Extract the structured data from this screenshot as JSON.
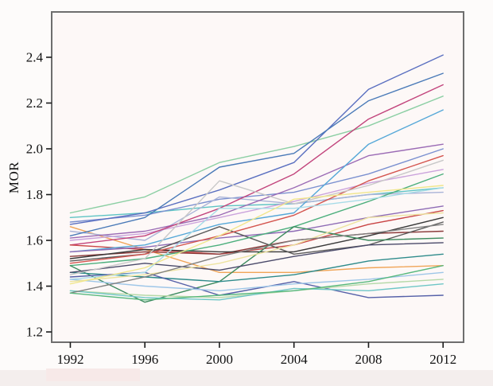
{
  "figure": {
    "background": "#fdfbfa",
    "plot_background": "#fdf8f7",
    "frame_color": "#6e6e6e",
    "tick_color": "#1a1a1a",
    "text_color": "#111111"
  },
  "chart_data": {
    "type": "line",
    "title": "",
    "xlabel": "",
    "ylabel": "MOR",
    "grid": false,
    "legend": "none",
    "x": [
      1992,
      1996,
      2000,
      2004,
      2008,
      2012
    ],
    "x_tick_labels": [
      "1992",
      "1996",
      "2000",
      "2004",
      "2008",
      "2012"
    ],
    "y_ticks": [
      1.2,
      1.4,
      1.6,
      1.8,
      2.0,
      2.2,
      2.4
    ],
    "y_tick_labels": [
      "1.2",
      "1.4",
      "1.6",
      "1.8",
      "2.0",
      "2.2",
      "2.4"
    ],
    "xlim": [
      1991.0,
      2013.1
    ],
    "ylim": [
      1.155,
      2.598
    ],
    "series": [
      {
        "color": "#8ccfa4",
        "values": [
          1.72,
          1.79,
          1.94,
          2.01,
          2.1,
          2.23
        ]
      },
      {
        "color": "#5ec4c4",
        "values": [
          1.7,
          1.72,
          1.75,
          1.76,
          1.8,
          1.83
        ]
      },
      {
        "color": "#7b90d0",
        "values": [
          1.68,
          1.71,
          1.78,
          1.81,
          1.89,
          2.0
        ]
      },
      {
        "color": "#5a6fc0",
        "values": [
          1.67,
          1.72,
          1.82,
          1.94,
          2.26,
          2.41
        ]
      },
      {
        "color": "#f0a558",
        "values": [
          1.66,
          1.56,
          1.46,
          1.46,
          1.48,
          1.49
        ]
      },
      {
        "color": "#aab4d8",
        "values": [
          1.64,
          1.6,
          1.79,
          1.76,
          1.8,
          1.81
        ]
      },
      {
        "color": "#4a7ab8",
        "values": [
          1.62,
          1.7,
          1.92,
          1.98,
          2.21,
          2.33
        ]
      },
      {
        "color": "#9b6bb5",
        "values": [
          1.61,
          1.64,
          1.71,
          1.83,
          1.97,
          2.02
        ]
      },
      {
        "color": "#cba3dc",
        "values": [
          1.6,
          1.63,
          1.7,
          1.77,
          1.85,
          1.91
        ]
      },
      {
        "color": "#c2447c",
        "values": [
          1.58,
          1.62,
          1.74,
          1.89,
          2.13,
          2.28
        ]
      },
      {
        "color": "#c94545",
        "values": [
          1.58,
          1.56,
          1.54,
          1.58,
          1.67,
          1.73
        ]
      },
      {
        "color": "#56a8d8",
        "values": [
          1.55,
          1.58,
          1.67,
          1.72,
          2.02,
          2.17
        ]
      },
      {
        "color": "#8e6bb5",
        "values": [
          1.55,
          1.57,
          1.61,
          1.64,
          1.7,
          1.75
        ]
      },
      {
        "color": "#8b3a3a",
        "values": [
          1.53,
          1.55,
          1.54,
          1.6,
          1.63,
          1.64
        ]
      },
      {
        "color": "#3a3a3a",
        "values": [
          1.52,
          1.56,
          1.55,
          1.55,
          1.62,
          1.7
        ]
      },
      {
        "color": "#5a5a5a",
        "values": [
          1.51,
          1.54,
          1.66,
          1.54,
          1.58,
          1.68
        ]
      },
      {
        "color": "#d4554f",
        "values": [
          1.5,
          1.54,
          1.62,
          1.71,
          1.86,
          1.97
        ]
      },
      {
        "color": "#4caf7d",
        "values": [
          1.49,
          1.52,
          1.58,
          1.66,
          1.77,
          1.89
        ]
      },
      {
        "color": "#3d8b5f",
        "values": [
          1.49,
          1.33,
          1.42,
          1.66,
          1.6,
          1.61
        ]
      },
      {
        "color": "#2e8b8b",
        "values": [
          1.46,
          1.44,
          1.42,
          1.45,
          1.51,
          1.54
        ]
      },
      {
        "color": "#4a4a6a",
        "values": [
          1.46,
          1.5,
          1.47,
          1.53,
          1.58,
          1.59
        ]
      },
      {
        "color": "#c8c8c8",
        "values": [
          1.45,
          1.52,
          1.86,
          1.76,
          1.84,
          1.95
        ]
      },
      {
        "color": "#5560a8",
        "values": [
          1.44,
          1.46,
          1.36,
          1.42,
          1.35,
          1.36
        ]
      },
      {
        "color": "#a8dce8",
        "values": [
          1.43,
          1.46,
          1.74,
          1.74,
          1.78,
          1.83
        ]
      },
      {
        "color": "#9ec6e8",
        "values": [
          1.43,
          1.4,
          1.38,
          1.41,
          1.43,
          1.46
        ]
      },
      {
        "color": "#ede3a0",
        "values": [
          1.42,
          1.45,
          1.5,
          1.58,
          1.7,
          1.72
        ]
      },
      {
        "color": "#f0e68c",
        "values": [
          1.41,
          1.48,
          1.62,
          1.78,
          1.81,
          1.84
        ]
      },
      {
        "color": "#b5d9a8",
        "values": [
          1.38,
          1.36,
          1.35,
          1.38,
          1.41,
          1.43
        ]
      },
      {
        "color": "#6ec6c6",
        "values": [
          1.38,
          1.35,
          1.34,
          1.39,
          1.38,
          1.41
        ]
      },
      {
        "color": "#808080",
        "values": [
          1.37,
          1.44,
          1.53,
          1.6,
          1.63,
          1.67
        ]
      },
      {
        "color": "#57b87d",
        "values": [
          1.37,
          1.34,
          1.36,
          1.38,
          1.42,
          1.49
        ]
      }
    ]
  }
}
